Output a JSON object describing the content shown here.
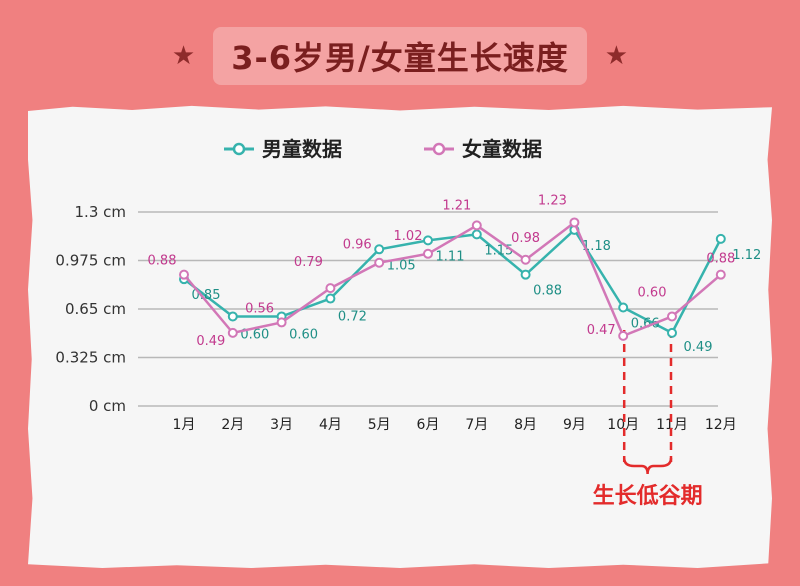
{
  "title": "3-6岁男/女童生长速度",
  "decor": {
    "star_left": "★",
    "star_right": "★"
  },
  "colors": {
    "background": "#f08080",
    "boy": "#36b3ad",
    "girl": "#d277b7",
    "annotation": "#e32b2b"
  },
  "chart_data": {
    "type": "line",
    "title": "3-6岁男/女童生长速度",
    "categories": [
      "1月",
      "2月",
      "3月",
      "4月",
      "5月",
      "6月",
      "7月",
      "8月",
      "9月",
      "10月",
      "11月",
      "12月"
    ],
    "ylim": [
      0,
      1.3
    ],
    "yticks": [
      "0 cm",
      "0.325 cm",
      "0.65 cm",
      "0.975 cm",
      "1.3 cm"
    ],
    "ytick_values": [
      0,
      0.325,
      0.65,
      0.975,
      1.3
    ],
    "grid": true,
    "legend": "top",
    "series": [
      {
        "name": "男童数据",
        "values": [
          0.85,
          0.6,
          0.6,
          0.72,
          1.05,
          1.11,
          1.15,
          0.88,
          1.18,
          0.66,
          0.49,
          1.12
        ],
        "labels": [
          "0.85",
          "0.60",
          "0.60",
          "0.72",
          "1.05",
          "1.11",
          "1.15",
          "0.88",
          "1.18",
          "0.66",
          "0.49",
          "1.12"
        ]
      },
      {
        "name": "女童数据",
        "values": [
          0.88,
          0.49,
          0.56,
          0.79,
          0.96,
          1.02,
          1.21,
          0.98,
          1.23,
          0.47,
          0.6,
          0.88
        ],
        "labels": [
          "0.88",
          "0.49",
          "0.56",
          "0.79",
          "0.96",
          "1.02",
          "1.21",
          "0.98",
          "1.23",
          "0.47",
          "0.60",
          "0.88"
        ]
      }
    ],
    "annotation": {
      "text": "生长低谷期",
      "from_category": "10月",
      "to_category": "11月"
    }
  }
}
